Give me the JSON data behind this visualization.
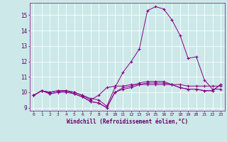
{
  "xlabel": "Windchill (Refroidissement éolien,°C)",
  "bg_color": "#cce8e8",
  "grid_color": "#ffffff",
  "line_color": "#880088",
  "xlim": [
    -0.5,
    23.5
  ],
  "ylim": [
    8.8,
    15.8
  ],
  "xticks": [
    0,
    1,
    2,
    3,
    4,
    5,
    6,
    7,
    8,
    9,
    10,
    11,
    12,
    13,
    14,
    15,
    16,
    17,
    18,
    19,
    20,
    21,
    22,
    23
  ],
  "yticks": [
    9,
    10,
    11,
    12,
    13,
    14,
    15
  ],
  "series": [
    [
      9.8,
      10.1,
      10.0,
      10.1,
      10.1,
      10.0,
      9.8,
      9.6,
      9.5,
      9.1,
      10.3,
      11.3,
      12.0,
      12.8,
      15.3,
      15.55,
      15.4,
      14.7,
      13.7,
      12.2,
      12.3,
      10.8,
      10.2,
      10.2
    ],
    [
      9.8,
      10.1,
      10.0,
      10.1,
      10.1,
      10.0,
      9.8,
      9.5,
      9.8,
      10.3,
      10.4,
      10.4,
      10.5,
      10.5,
      10.5,
      10.5,
      10.5,
      10.5,
      10.5,
      10.4,
      10.4,
      10.4,
      10.4,
      10.4
    ],
    [
      9.8,
      10.1,
      9.9,
      10.0,
      10.0,
      9.9,
      9.7,
      9.4,
      9.3,
      9.0,
      10.0,
      10.2,
      10.3,
      10.5,
      10.6,
      10.6,
      10.6,
      10.5,
      10.3,
      10.2,
      10.2,
      10.1,
      10.1,
      10.5
    ],
    [
      9.8,
      10.1,
      9.9,
      10.0,
      10.1,
      9.9,
      9.7,
      9.4,
      9.3,
      9.0,
      10.0,
      10.3,
      10.4,
      10.6,
      10.7,
      10.7,
      10.7,
      10.5,
      10.3,
      10.2,
      10.2,
      10.1,
      10.1,
      10.5
    ]
  ]
}
